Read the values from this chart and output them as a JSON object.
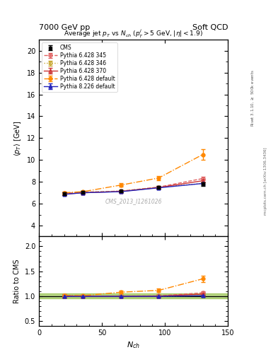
{
  "title_top_left": "7000 GeV pp",
  "title_top_right": "Soft QCD",
  "plot_title": "Average jet $p_T$ vs $N_{ch}$ ($p_T^j$$>$5 GeV, $|\\eta|$$<$1.9)",
  "xlabel": "$N_{ch}$",
  "ylabel_main": "$\\langle p_T \\rangle$ [GeV]",
  "ylabel_ratio": "Ratio to CMS",
  "right_label_top": "Rivet 3.1.10, $\\geq$ 500k events",
  "right_label_bottom": "mcplots.cern.ch [arXiv:1306.3436]",
  "watermark": "CMS_2013_I1261026",
  "xlim": [
    0,
    150
  ],
  "ylim_main": [
    3,
    21
  ],
  "ylim_ratio": [
    0.4,
    2.2
  ],
  "yticks_main": [
    4,
    6,
    8,
    10,
    12,
    14,
    16,
    18,
    20
  ],
  "yticks_ratio": [
    0.5,
    1.0,
    1.5,
    2.0
  ],
  "xticks": [
    0,
    50,
    100,
    150
  ],
  "nch_x": [
    20,
    35,
    65,
    95,
    130
  ],
  "cms_y": [
    6.9,
    7.05,
    7.15,
    7.5,
    7.8
  ],
  "cms_yerr": [
    0.15,
    0.1,
    0.1,
    0.12,
    0.15
  ],
  "p6_345_y": [
    6.95,
    7.05,
    7.15,
    7.52,
    8.3
  ],
  "p6_345_yerr": [
    0.1,
    0.08,
    0.08,
    0.1,
    0.15
  ],
  "p6_346_y": [
    6.95,
    7.05,
    7.15,
    7.5,
    7.85
  ],
  "p6_346_yerr": [
    0.08,
    0.07,
    0.07,
    0.08,
    0.1
  ],
  "p6_370_y": [
    6.88,
    7.0,
    7.12,
    7.48,
    8.1
  ],
  "p6_370_yerr": [
    0.1,
    0.08,
    0.08,
    0.1,
    0.15
  ],
  "p6_def_y": [
    7.0,
    7.1,
    7.7,
    8.35,
    10.5
  ],
  "p6_def_yerr": [
    0.1,
    0.1,
    0.15,
    0.2,
    0.5
  ],
  "p8_def_y": [
    6.85,
    7.0,
    7.1,
    7.45,
    7.85
  ],
  "p8_def_yerr": [
    0.08,
    0.07,
    0.07,
    0.08,
    0.1
  ],
  "color_cms": "#000000",
  "color_345": "#e06060",
  "color_346": "#c8a832",
  "color_370": "#cc3333",
  "color_p6def": "#ff8800",
  "color_p8def": "#2222bb",
  "band_color": "#88bb33",
  "bg_color": "#ffffff"
}
